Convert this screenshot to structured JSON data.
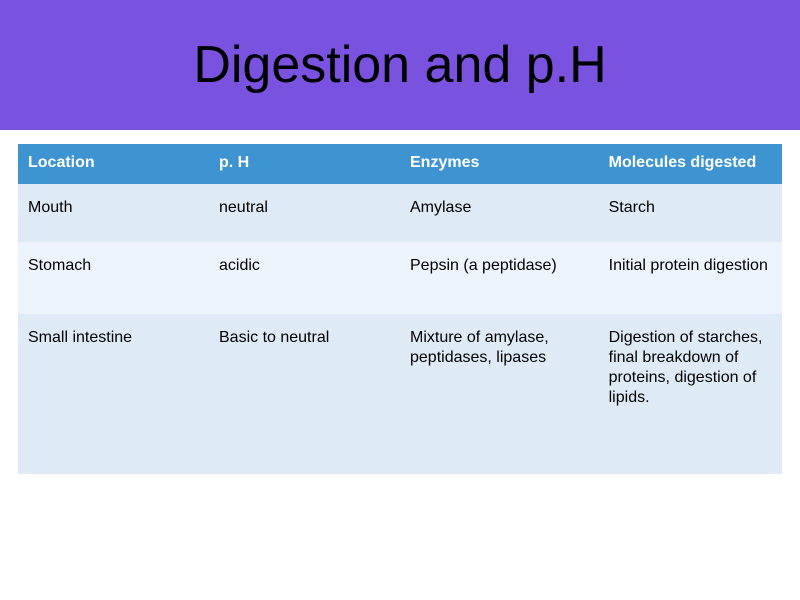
{
  "title": {
    "text": "Digestion and p.H",
    "background": "#7a52e0",
    "text_color": "#000000"
  },
  "table": {
    "header_bg": "#3e94d1",
    "header_text_color": "#ffffff",
    "row_colors": [
      "#deeaf6",
      "#eef4fb",
      "#deeaf6"
    ],
    "col_widths": [
      "25%",
      "25%",
      "26%",
      "24%"
    ],
    "row_heights": [
      "58px",
      "72px",
      "160px"
    ],
    "columns": [
      "Location",
      "p. H",
      "Enzymes",
      "Molecules digested"
    ],
    "rows": [
      [
        "Mouth",
        "neutral",
        "Amylase",
        "Starch"
      ],
      [
        "Stomach",
        "acidic",
        "Pepsin (a peptidase)",
        "Initial protein digestion"
      ],
      [
        "Small intestine",
        "Basic to neutral",
        "Mixture of amylase, peptidases, lipases",
        "Digestion of starches, final breakdown of proteins, digestion of lipids."
      ]
    ]
  }
}
